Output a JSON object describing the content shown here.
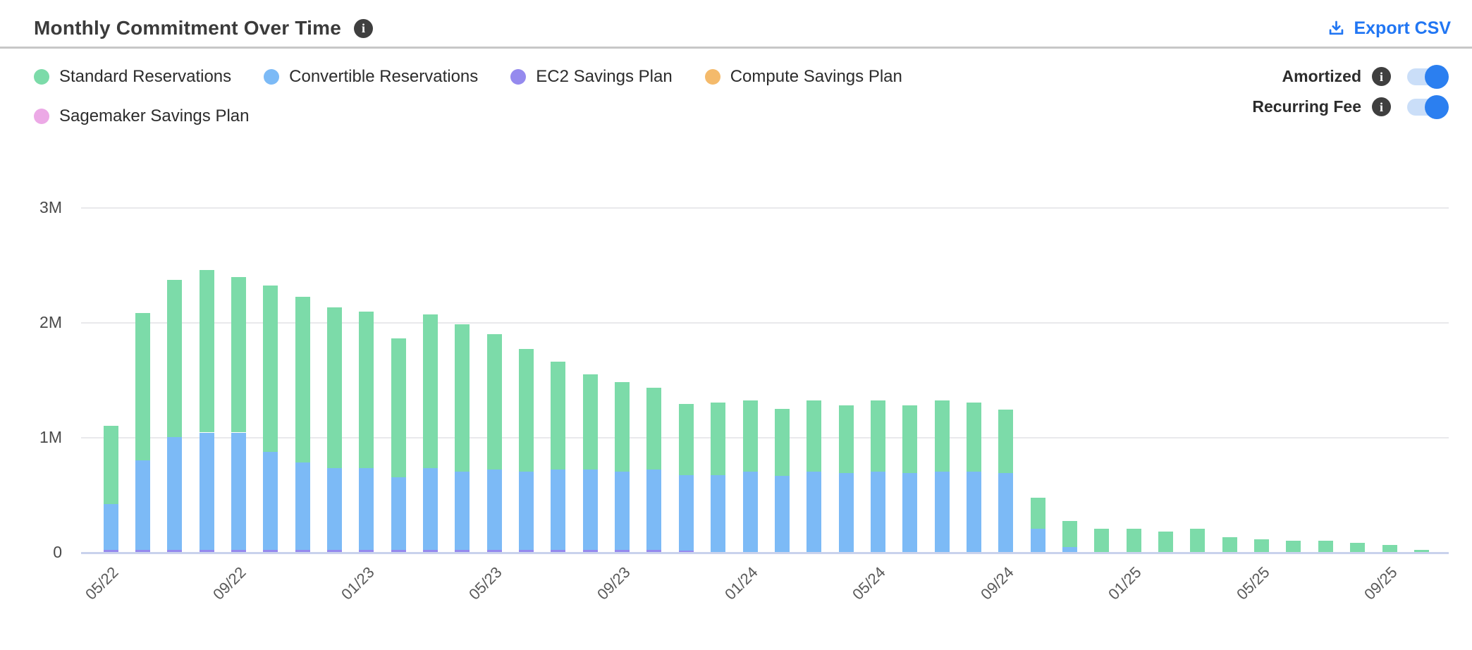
{
  "header": {
    "title": "Monthly Commitment Over Time",
    "title_info_icon": "info-icon",
    "export_label": "Export CSV",
    "export_icon": "download-icon",
    "accent_color": "#2176F3"
  },
  "legend": [
    {
      "label": "Standard Reservations",
      "color": "#7CDBA9"
    },
    {
      "label": "Convertible Reservations",
      "color": "#7CBAF6"
    },
    {
      "label": "EC2 Savings Plan",
      "color": "#958AEE"
    },
    {
      "label": "Compute Savings Plan",
      "color": "#F4BA6B"
    },
    {
      "label": "Sagemaker Savings Plan",
      "color": "#ECA9E6"
    }
  ],
  "toggles": [
    {
      "label": "Amortized",
      "state": "on",
      "info_icon": true
    },
    {
      "label": "Recurring Fee",
      "state": "on",
      "info_icon": true
    }
  ],
  "toggle_colors": {
    "track": "#cadef8",
    "knob": "#2b7ff0"
  },
  "chart_data": {
    "type": "bar",
    "stacked": true,
    "values_in": "millions",
    "ylim": [
      0,
      3000000
    ],
    "yticks": [
      "3M",
      "2M",
      "1M",
      "0"
    ],
    "grid": "horizontal",
    "legend_position": "top-left",
    "x": [
      "05/22",
      "06/22",
      "07/22",
      "08/22",
      "09/22",
      "10/22",
      "11/22",
      "12/22",
      "01/23",
      "02/23",
      "03/23",
      "04/23",
      "05/23",
      "06/23",
      "07/23",
      "08/23",
      "09/23",
      "10/23",
      "11/23",
      "12/23",
      "01/24",
      "02/24",
      "03/24",
      "04/24",
      "05/24",
      "06/24",
      "07/24",
      "08/24",
      "09/24",
      "10/24",
      "11/24",
      "12/24",
      "01/25",
      "02/25",
      "03/25",
      "04/25",
      "05/25",
      "06/25",
      "07/25",
      "08/25",
      "09/25",
      "10/25"
    ],
    "x_tick_labels": [
      "05/22",
      "09/22",
      "01/23",
      "05/23",
      "09/23",
      "01/24",
      "05/24",
      "09/24",
      "01/25",
      "05/25",
      "09/25"
    ],
    "x_tick_every": 4,
    "series": [
      {
        "name": "EC2 Savings Plan",
        "color": "#958AEE",
        "values": [
          0.02,
          0.02,
          0.02,
          0.02,
          0.02,
          0.02,
          0.02,
          0.02,
          0.02,
          0.02,
          0.02,
          0.02,
          0.02,
          0.02,
          0.02,
          0.02,
          0.02,
          0.02,
          0.01,
          0,
          0,
          0,
          0,
          0,
          0,
          0,
          0,
          0,
          0,
          0,
          0,
          0,
          0,
          0,
          0,
          0,
          0,
          0,
          0,
          0,
          0,
          0
        ]
      },
      {
        "name": "Convertible Reservations",
        "color": "#7CBAF6",
        "values": [
          0.4,
          0.78,
          0.98,
          1.02,
          1.02,
          0.85,
          0.76,
          0.71,
          0.71,
          0.63,
          0.71,
          0.68,
          0.7,
          0.68,
          0.7,
          0.7,
          0.68,
          0.7,
          0.66,
          0.67,
          0.7,
          0.66,
          0.7,
          0.69,
          0.7,
          0.69,
          0.7,
          0.7,
          0.69,
          0.2,
          0.04,
          0,
          0,
          0,
          0,
          0,
          0,
          0,
          0,
          0,
          0,
          0
        ]
      },
      {
        "name": "Standard Reservations",
        "color": "#7CDBA9",
        "values": [
          0.68,
          1.28,
          1.37,
          1.41,
          1.35,
          1.45,
          1.44,
          1.4,
          1.36,
          1.21,
          1.34,
          1.28,
          1.18,
          1.07,
          0.94,
          0.83,
          0.78,
          0.71,
          0.62,
          0.63,
          0.62,
          0.58,
          0.62,
          0.59,
          0.62,
          0.59,
          0.62,
          0.6,
          0.55,
          0.27,
          0.23,
          0.2,
          0.2,
          0.18,
          0.2,
          0.13,
          0.11,
          0.1,
          0.1,
          0.08,
          0.06,
          0.02
        ]
      },
      {
        "name": "Compute Savings Plan",
        "color": "#F4BA6B",
        "values": [
          0,
          0,
          0,
          0,
          0,
          0,
          0,
          0,
          0,
          0,
          0,
          0,
          0,
          0,
          0,
          0,
          0,
          0,
          0,
          0,
          0,
          0,
          0,
          0,
          0,
          0,
          0,
          0,
          0,
          0,
          0,
          0,
          0,
          0,
          0,
          0,
          0,
          0,
          0,
          0,
          0,
          0
        ]
      },
      {
        "name": "Sagemaker Savings Plan",
        "color": "#ECA9E6",
        "values": [
          0,
          0,
          0,
          0,
          0,
          0,
          0,
          0,
          0,
          0,
          0,
          0,
          0,
          0,
          0,
          0,
          0,
          0,
          0,
          0,
          0,
          0,
          0,
          0,
          0,
          0,
          0,
          0,
          0,
          0,
          0,
          0,
          0,
          0,
          0,
          0,
          0,
          0,
          0,
          0,
          0,
          0
        ]
      }
    ]
  }
}
